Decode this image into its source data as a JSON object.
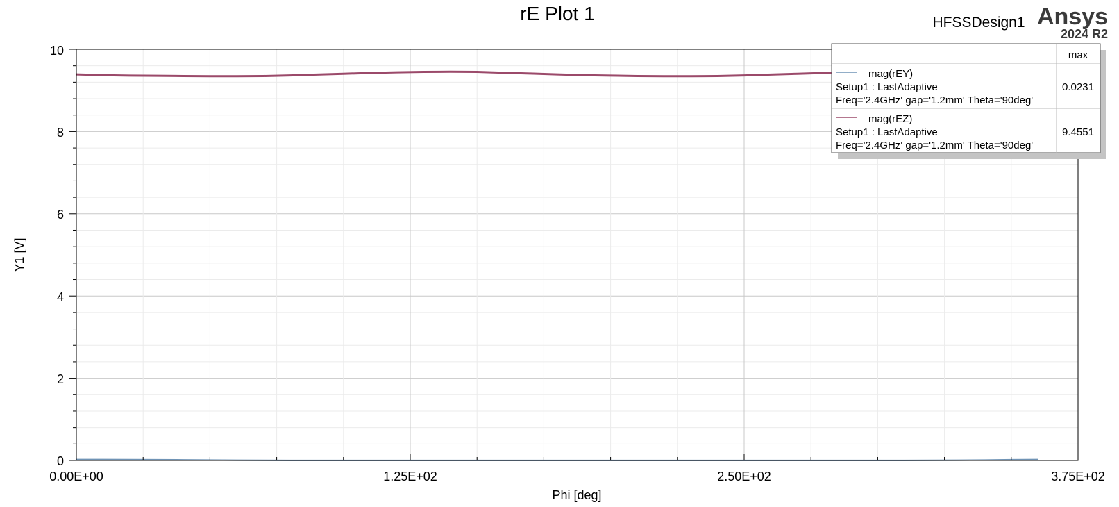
{
  "header": {
    "design_name": "HFSSDesign1",
    "brand": "Ansys",
    "version": "2024 R2"
  },
  "chart_data": {
    "type": "line",
    "title": "rE Plot 1",
    "xlabel": "Phi [deg]",
    "ylabel": "Y1 [V]",
    "xlim": [
      0,
      375
    ],
    "ylim": [
      0,
      10
    ],
    "x_tick_labels": [
      "0.00E+00",
      "1.25E+02",
      "2.50E+02",
      "3.75E+02"
    ],
    "y_tick_labels": [
      "0",
      "2",
      "4",
      "6",
      "8",
      "10"
    ],
    "grid": true,
    "legend_position": "top-right",
    "legend_column_header": "max",
    "series": [
      {
        "name": "mag(rEY)",
        "setup": "Setup1 : LastAdaptive",
        "variation": "Freq='2.4GHz' gap='1.2mm' Theta='90deg'",
        "max": "0.0231",
        "color": "#6f93b5",
        "x": [
          0,
          10,
          20,
          30,
          40,
          50,
          60,
          70,
          80,
          90,
          100,
          110,
          120,
          130,
          140,
          150,
          160,
          170,
          180,
          190,
          200,
          210,
          220,
          230,
          240,
          250,
          260,
          270,
          280,
          290,
          300,
          310,
          320,
          330,
          340,
          350,
          360
        ],
        "y": [
          0.023,
          0.023,
          0.022,
          0.02,
          0.015,
          0.01,
          0.006,
          0.004,
          0.003,
          0.002,
          0.002,
          0.002,
          0.002,
          0.002,
          0.002,
          0.002,
          0.002,
          0.002,
          0.002,
          0.002,
          0.002,
          0.002,
          0.002,
          0.002,
          0.002,
          0.002,
          0.002,
          0.002,
          0.002,
          0.002,
          0.002,
          0.003,
          0.004,
          0.006,
          0.01,
          0.018,
          0.023
        ]
      },
      {
        "name": "mag(rEZ)",
        "setup": "Setup1 : LastAdaptive",
        "variation": "Freq='2.4GHz' gap='1.2mm' Theta='90deg'",
        "max": "9.4551",
        "color": "#9b4a6a",
        "x": [
          0,
          10,
          20,
          30,
          40,
          50,
          60,
          70,
          80,
          90,
          100,
          110,
          120,
          130,
          140,
          150,
          160,
          170,
          180,
          190,
          200,
          210,
          220,
          230,
          240,
          250,
          260,
          270,
          280,
          290,
          300,
          310,
          320,
          330,
          340,
          350,
          360
        ],
        "y": [
          9.39,
          9.37,
          9.36,
          9.355,
          9.35,
          9.345,
          9.345,
          9.35,
          9.365,
          9.385,
          9.405,
          9.425,
          9.44,
          9.45,
          9.455,
          9.45,
          9.43,
          9.41,
          9.39,
          9.37,
          9.36,
          9.35,
          9.345,
          9.345,
          9.35,
          9.365,
          9.385,
          9.405,
          9.425,
          9.44,
          9.45,
          9.455,
          9.45,
          9.44,
          9.42,
          9.4,
          9.39
        ]
      }
    ]
  }
}
